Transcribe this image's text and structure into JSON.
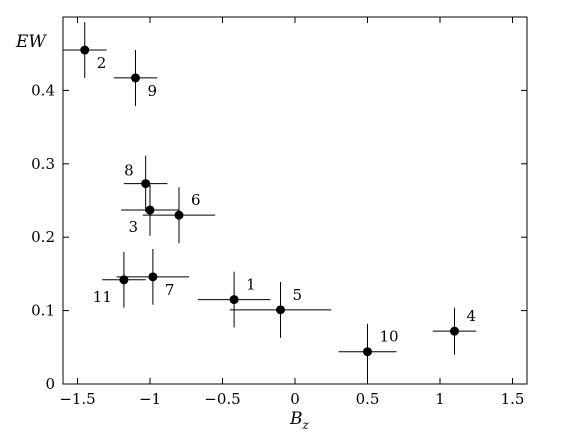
{
  "chart_data": {
    "type": "scatter",
    "title": "",
    "xlabel": "B",
    "xlabel_sub": "z",
    "ylabel": "EW",
    "xlim": [
      -1.6,
      1.6
    ],
    "ylim": [
      0,
      0.5
    ],
    "xticks": [
      -1.5,
      -1,
      -0.5,
      0,
      0.5,
      1,
      1.5
    ],
    "xtick_labels": [
      "−1.5",
      "−1",
      "−0.5",
      "0",
      "0.5",
      "1",
      "1.5"
    ],
    "yticks": [
      0,
      0.1,
      0.2,
      0.3,
      0.4
    ],
    "ytick_labels": [
      "0",
      "0.1",
      "0.2",
      "0.3",
      "0.4"
    ],
    "grid": false,
    "points": [
      {
        "label": "1",
        "x": -0.42,
        "y": 0.115,
        "xerr": 0.25,
        "yerr": 0.038,
        "label_pos": "upper-right"
      },
      {
        "label": "2",
        "x": -1.45,
        "y": 0.455,
        "xerr": 0.15,
        "yerr": 0.038,
        "label_pos": "lower-right"
      },
      {
        "label": "3",
        "x": -1.0,
        "y": 0.237,
        "xerr": 0.2,
        "yerr": 0.035,
        "label_pos": "lower-left"
      },
      {
        "label": "4",
        "x": 1.1,
        "y": 0.072,
        "xerr": 0.15,
        "yerr": 0.032,
        "label_pos": "upper-right"
      },
      {
        "label": "5",
        "x": -0.1,
        "y": 0.101,
        "xerr": 0.35,
        "yerr": 0.038,
        "label_pos": "upper-right"
      },
      {
        "label": "6",
        "x": -0.8,
        "y": 0.23,
        "xerr": 0.25,
        "yerr": 0.038,
        "label_pos": "upper-right"
      },
      {
        "label": "7",
        "x": -0.98,
        "y": 0.146,
        "xerr": 0.25,
        "yerr": 0.038,
        "label_pos": "lower-right"
      },
      {
        "label": "8",
        "x": -1.03,
        "y": 0.273,
        "xerr": 0.15,
        "yerr": 0.038,
        "label_pos": "upper-left"
      },
      {
        "label": "9",
        "x": -1.1,
        "y": 0.417,
        "xerr": 0.15,
        "yerr": 0.038,
        "label_pos": "lower-right"
      },
      {
        "label": "10",
        "x": 0.5,
        "y": 0.044,
        "xerr": 0.2,
        "yerr": 0.038,
        "label_pos": "upper-right"
      },
      {
        "label": "11",
        "x": -1.18,
        "y": 0.142,
        "xerr": 0.15,
        "yerr": 0.038,
        "label_pos": "lower-left"
      }
    ]
  }
}
